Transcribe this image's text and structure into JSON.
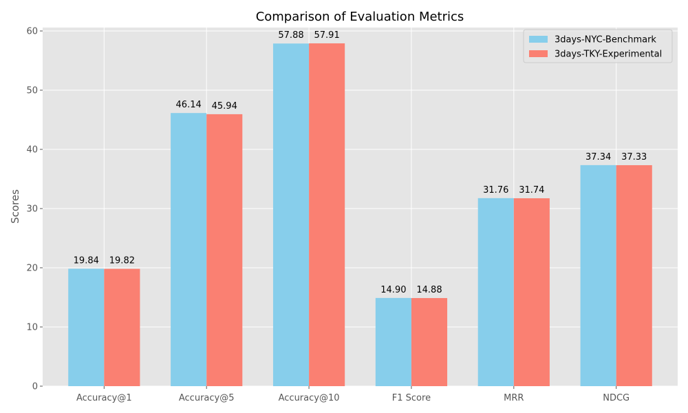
{
  "chart_data": {
    "type": "bar",
    "title": "Comparison of Evaluation Metrics",
    "xlabel": "",
    "ylabel": "Scores",
    "ylim": [
      0,
      60
    ],
    "yticks": [
      0,
      10,
      20,
      30,
      40,
      50,
      60
    ],
    "categories": [
      "Accuracy@1",
      "Accuracy@5",
      "Accuracy@10",
      "F1 Score",
      "MRR",
      "NDCG"
    ],
    "series": [
      {
        "name": "3days-NYC-Benchmark",
        "color": "#87ceeb",
        "values": [
          19.84,
          46.14,
          57.88,
          14.9,
          31.76,
          37.34
        ],
        "labels": [
          "19.84",
          "46.14",
          "57.88",
          "14.90",
          "31.76",
          "37.34"
        ]
      },
      {
        "name": "3days-TKY-Experimental",
        "color": "#fa8072",
        "values": [
          19.82,
          45.94,
          57.91,
          14.88,
          31.74,
          37.33
        ],
        "labels": [
          "19.82",
          "45.94",
          "57.91",
          "14.88",
          "31.74",
          "37.33"
        ]
      }
    ],
    "grid": true,
    "legend_position": "top-right",
    "background": "#e5e5e5",
    "grid_color": "#ffffff"
  }
}
